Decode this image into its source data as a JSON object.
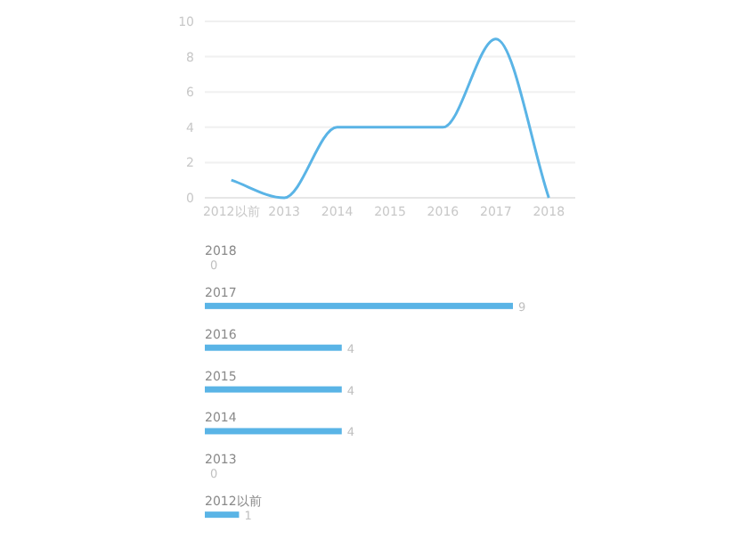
{
  "chart_data": [
    {
      "type": "line",
      "categories": [
        "2012以前",
        "2013",
        "2014",
        "2015",
        "2016",
        "2017",
        "2018"
      ],
      "series": [
        {
          "color": "#5ab4e6",
          "values": [
            1,
            0,
            4,
            4,
            4,
            9,
            0
          ]
        }
      ],
      "ylim": [
        0,
        10
      ],
      "yticks": [
        0,
        2,
        4,
        6,
        8,
        10
      ],
      "grid": "y",
      "marker": "none"
    },
    {
      "type": "bar",
      "orientation": "horizontal",
      "categories": [
        "2018",
        "2017",
        "2016",
        "2015",
        "2014",
        "2013",
        "2012以前"
      ],
      "values": [
        0,
        9,
        4,
        4,
        4,
        0,
        1
      ],
      "color": "#5ab4e6",
      "xlim": [
        0,
        9
      ],
      "data_labels": true,
      "tick_labels": "y"
    }
  ]
}
